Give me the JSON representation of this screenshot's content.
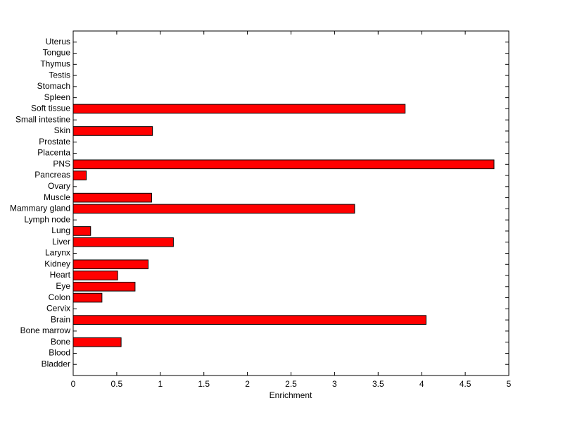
{
  "chart_data": {
    "type": "hbar",
    "xlabel": "Enrichment",
    "categories": [
      "Bladder",
      "Blood",
      "Bone",
      "Bone marrow",
      "Brain",
      "Cervix",
      "Colon",
      "Eye",
      "Heart",
      "Kidney",
      "Larynx",
      "Liver",
      "Lung",
      "Lymph node",
      "Mammary gland",
      "Muscle",
      "Ovary",
      "Pancreas",
      "PNS",
      "Placenta",
      "Prostate",
      "Skin",
      "Small intestine",
      "Soft tissue",
      "Spleen",
      "Stomach",
      "Testis",
      "Thymus",
      "Tongue",
      "Uterus"
    ],
    "values": [
      0,
      0,
      0.55,
      0,
      4.05,
      0,
      0.33,
      0.71,
      0.51,
      0.86,
      0,
      1.15,
      0.2,
      0,
      3.23,
      0.9,
      0,
      0.15,
      4.83,
      0,
      0,
      0.91,
      0,
      3.81,
      0,
      0,
      0,
      0,
      0,
      0
    ],
    "color": "#ff0000",
    "xlim": [
      0,
      5
    ],
    "xticks": [
      0,
      0.5,
      1,
      1.5,
      2,
      2.5,
      3,
      3.5,
      4,
      4.5,
      5
    ],
    "grid": false
  }
}
